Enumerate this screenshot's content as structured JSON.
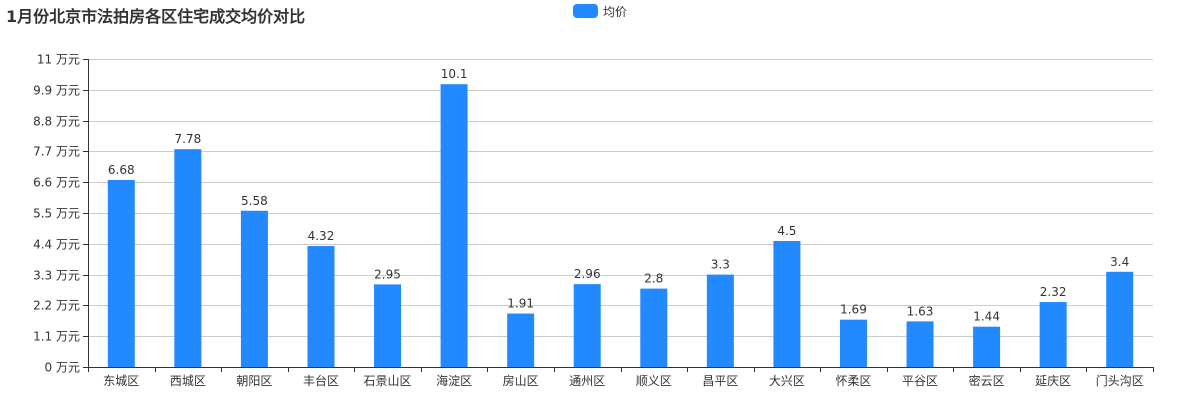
{
  "chart_data": {
    "type": "bar",
    "title": "1月份北京市法拍房各区住宅成交均价对比",
    "categories": [
      "东城区",
      "西城区",
      "朝阳区",
      "丰台区",
      "石景山区",
      "海淀区",
      "房山区",
      "通州区",
      "顺义区",
      "昌平区",
      "大兴区",
      "怀柔区",
      "平谷区",
      "密云区",
      "延庆区",
      "门头沟区"
    ],
    "series": [
      {
        "name": "均价",
        "values": [
          6.68,
          7.78,
          5.58,
          4.32,
          2.95,
          10.1,
          1.91,
          2.96,
          2.8,
          3.3,
          4.5,
          1.69,
          1.63,
          1.44,
          2.32,
          3.4
        ],
        "value_labels": [
          "6.68",
          "7.78",
          "5.58",
          "4.32",
          "2.95",
          "10.1",
          "1.91",
          "2.96",
          "2.8",
          "3.3",
          "4.5",
          "1.69",
          "1.63",
          "1.44",
          "2.32",
          "3.4"
        ],
        "color": "#2389ff"
      }
    ],
    "ylim": [
      0,
      11
    ],
    "yticks": [
      0,
      1.1,
      2.2,
      3.3,
      4.4,
      5.5,
      6.6,
      7.7,
      8.8,
      9.9,
      11
    ],
    "ytick_labels": [
      "0 万元",
      "1.1 万元",
      "2.2 万元",
      "3.3 万元",
      "4.4 万元",
      "5.5 万元",
      "6.6 万元",
      "7.7 万元",
      "8.8 万元",
      "9.9 万元",
      "11 万元"
    ],
    "grid": true,
    "legend_position": "top-center",
    "xlabel": "",
    "ylabel": ""
  }
}
